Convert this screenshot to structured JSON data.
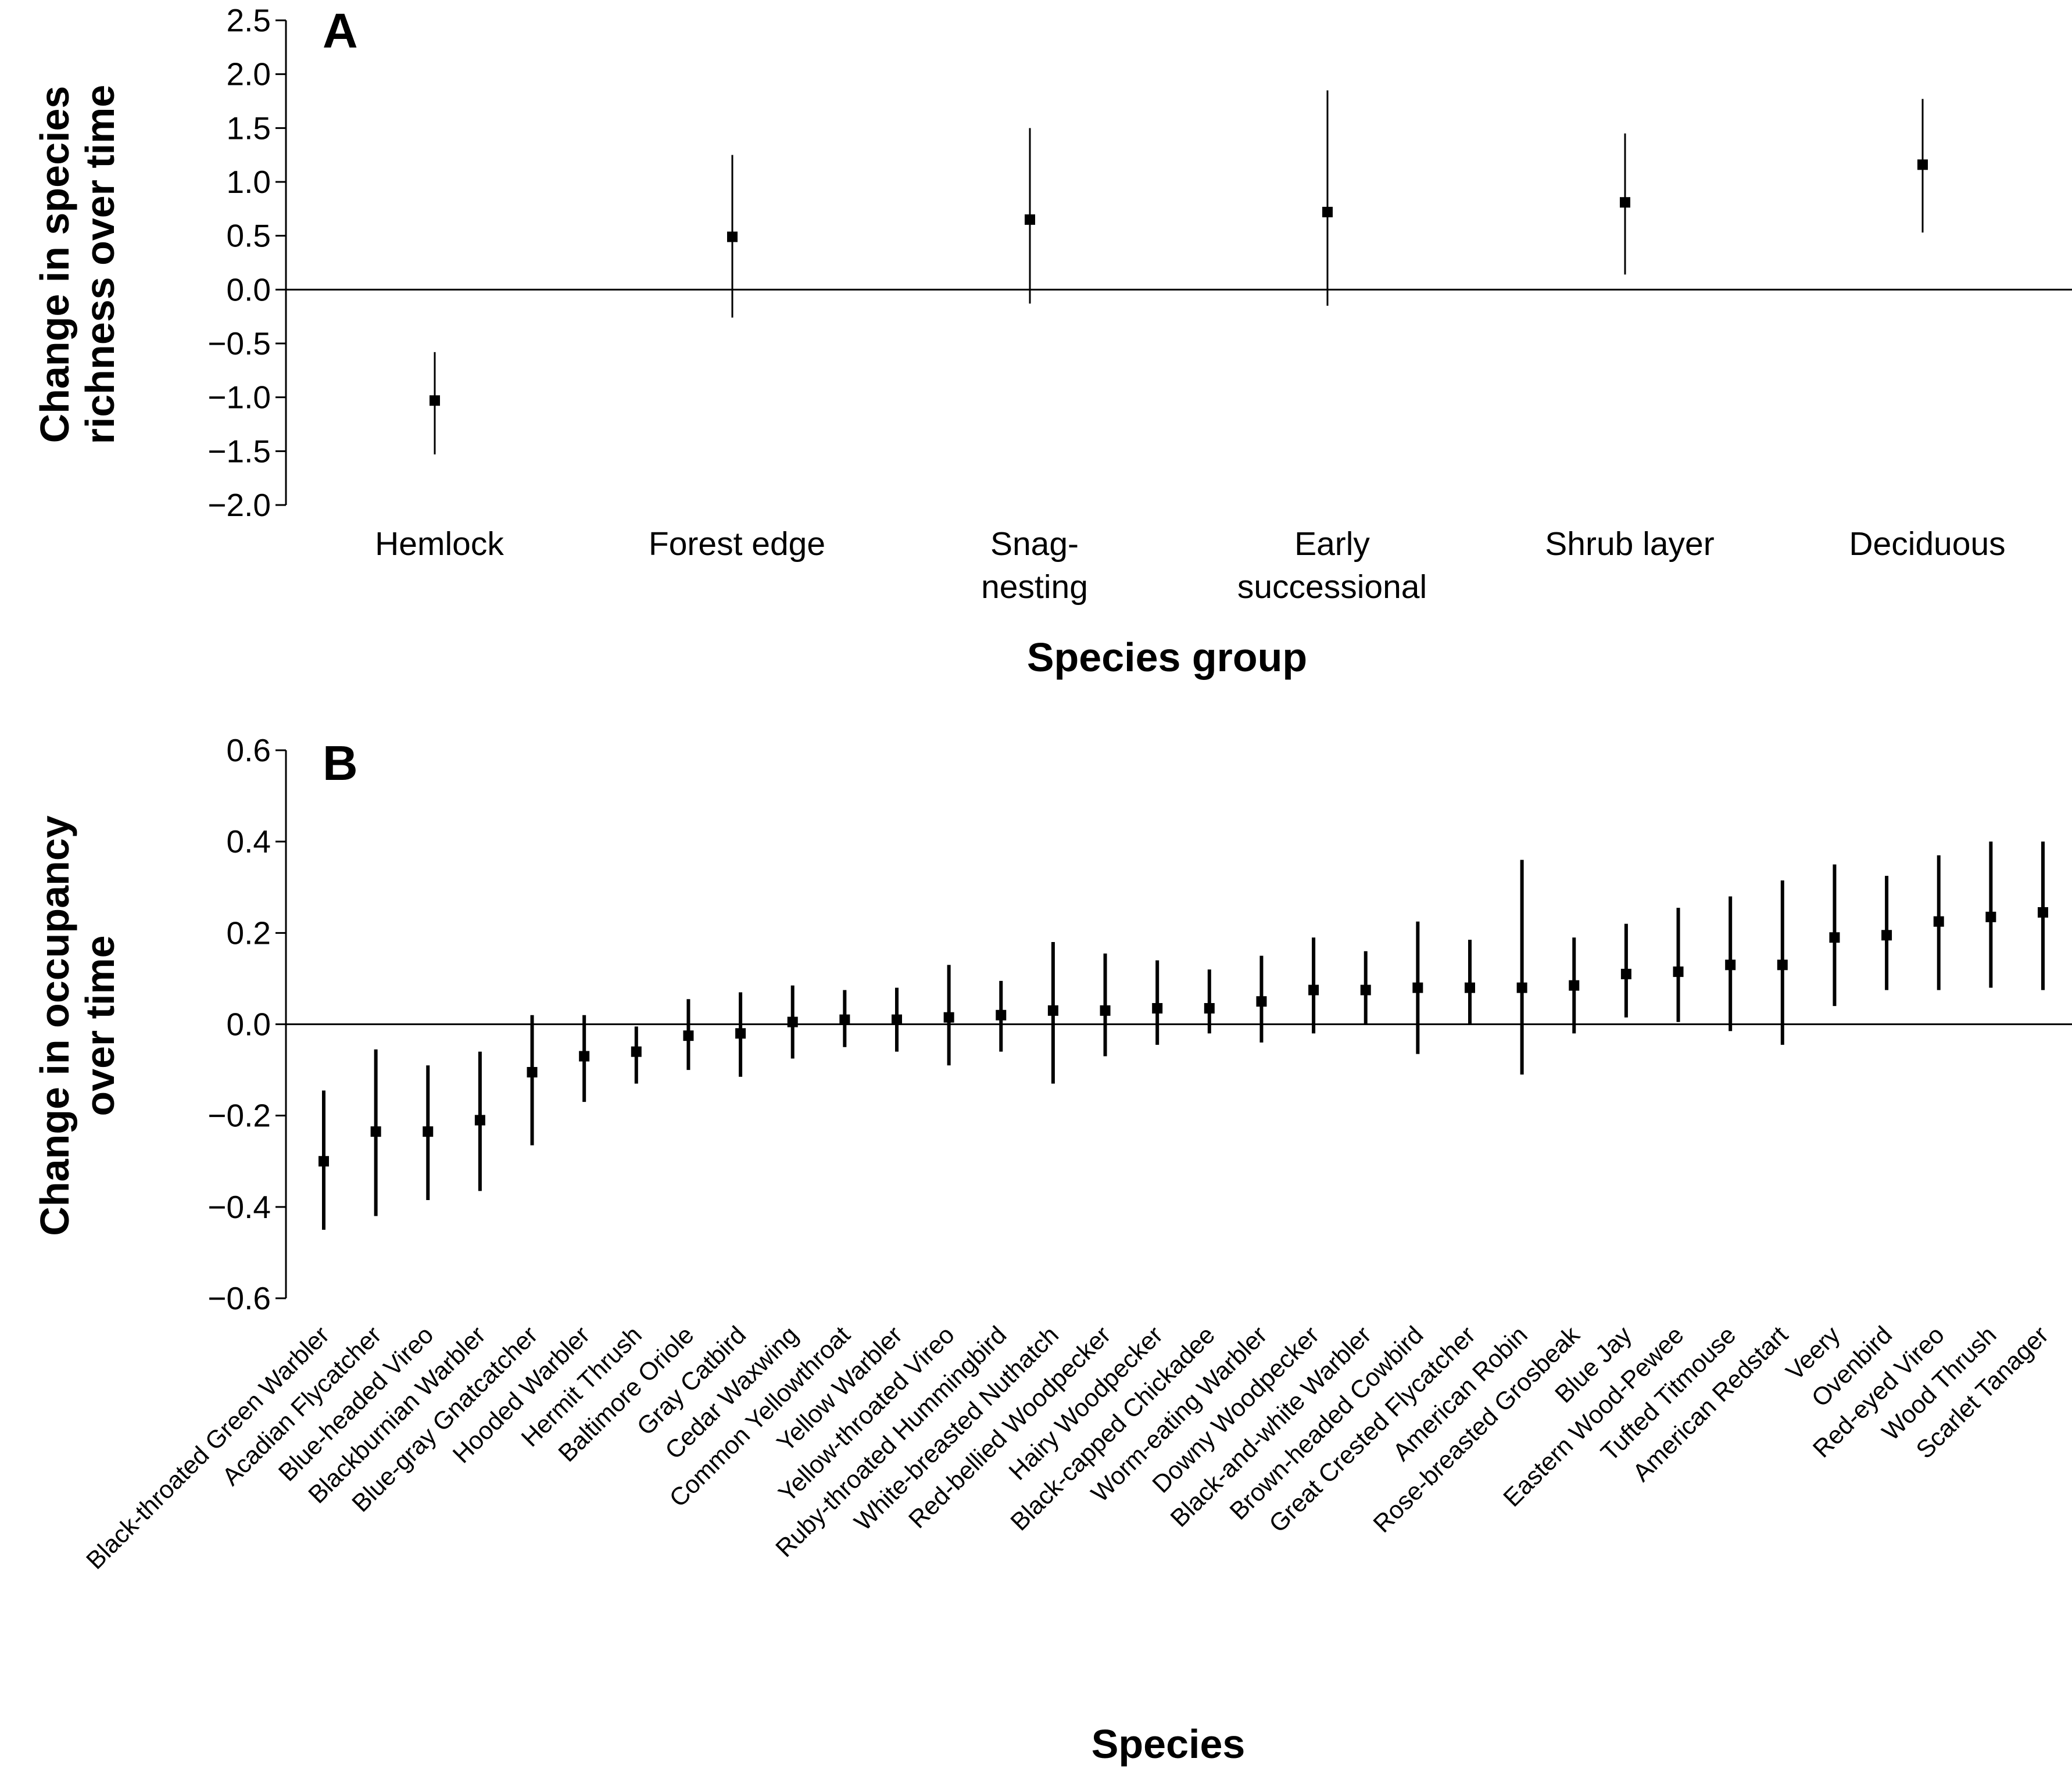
{
  "chart_data": [
    {
      "type": "scatter",
      "panel_label": "A",
      "ylabel_lines": [
        "Change in species",
        "richness over time"
      ],
      "xlabel": "Species group",
      "ylim": [
        -2.0,
        2.5
      ],
      "yticks": [
        2.5,
        2.0,
        1.5,
        1.0,
        0.5,
        0.0,
        -0.5,
        -1.0,
        -1.5,
        -2.0
      ],
      "ytick_labels": [
        "2.5",
        "2.0",
        "1.5",
        "1.0",
        "0.5",
        "0.0",
        "−0.5",
        "−1.0",
        "−1.5",
        "−2.0"
      ],
      "categories": [
        [
          "Hemlock"
        ],
        [
          "Forest edge"
        ],
        [
          "Snag-",
          "nesting"
        ],
        [
          "Early",
          "successional"
        ],
        [
          "Shrub layer"
        ],
        [
          "Deciduous"
        ]
      ],
      "values": [
        -1.03,
        0.49,
        0.65,
        0.72,
        0.81,
        1.16
      ],
      "error_low": [
        -1.53,
        -0.26,
        -0.13,
        -0.15,
        0.14,
        0.53
      ],
      "error_high": [
        -0.58,
        1.25,
        1.5,
        1.85,
        1.45,
        1.77
      ],
      "reference_line": 0.0,
      "grid": false
    },
    {
      "type": "scatter",
      "panel_label": "B",
      "ylabel_lines": [
        "Change in occupancy",
        "over time"
      ],
      "xlabel": "Species",
      "ylim": [
        -0.6,
        0.6
      ],
      "yticks": [
        0.6,
        0.4,
        0.2,
        0.0,
        -0.2,
        -0.4,
        -0.6
      ],
      "ytick_labels": [
        "0.6",
        "0.4",
        "0.2",
        "0.0",
        "−0.2",
        "−0.4",
        "−0.6"
      ],
      "categories": [
        "Black-throated Green Warbler",
        "Acadian Flycatcher",
        "Blue-headed Vireo",
        "Blackburnian Warbler",
        "Blue-gray Gnatcatcher",
        "Hooded Warbler",
        "Hermit Thrush",
        "Baltimore Oriole",
        "Gray Catbird",
        "Cedar Waxwing",
        "Common Yellowthroat",
        "Yellow Warbler",
        "Yellow-throated Vireo",
        "Ruby-throated Hummingbird",
        "White-breasted Nuthatch",
        "Red-bellied Woodpecker",
        "Hairy Woodpecker",
        "Black-capped Chickadee",
        "Worm-eating Warbler",
        "Downy Woodpecker",
        "Black-and-white Warbler",
        "Brown-headed Cowbird",
        "Great Crested Flycatcher",
        "American Robin",
        "Rose-breasted Grosbeak",
        "Blue Jay",
        "Eastern Wood-Pewee",
        "Tufted Titmouse",
        "American Redstart",
        "Veery",
        "Ovenbird",
        "Red-eyed Vireo",
        "Wood Thrush",
        "Scarlet Tanager"
      ],
      "values": [
        -0.3,
        -0.235,
        -0.235,
        -0.21,
        -0.105,
        -0.07,
        -0.06,
        -0.025,
        -0.02,
        0.005,
        0.01,
        0.01,
        0.015,
        0.02,
        0.03,
        0.03,
        0.035,
        0.035,
        0.05,
        0.075,
        0.075,
        0.08,
        0.08,
        0.08,
        0.085,
        0.11,
        0.115,
        0.13,
        0.13,
        0.19,
        0.195,
        0.225,
        0.235,
        0.245
      ],
      "error_low": [
        -0.45,
        -0.42,
        -0.385,
        -0.365,
        -0.265,
        -0.17,
        -0.13,
        -0.1,
        -0.115,
        -0.075,
        -0.05,
        -0.06,
        -0.09,
        -0.06,
        -0.13,
        -0.07,
        -0.045,
        -0.02,
        -0.04,
        -0.02,
        0.0,
        -0.065,
        0.0,
        -0.11,
        -0.02,
        0.015,
        0.005,
        -0.015,
        -0.045,
        0.04,
        0.075,
        0.075,
        0.08,
        0.075
      ],
      "error_high": [
        -0.145,
        -0.055,
        -0.09,
        -0.06,
        0.02,
        0.02,
        -0.005,
        0.055,
        0.07,
        0.085,
        0.075,
        0.08,
        0.13,
        0.095,
        0.18,
        0.155,
        0.14,
        0.12,
        0.15,
        0.19,
        0.16,
        0.225,
        0.185,
        0.36,
        0.19,
        0.22,
        0.255,
        0.28,
        0.315,
        0.35,
        0.325,
        0.37,
        0.4,
        0.4
      ],
      "reference_line": 0.0,
      "grid": false
    }
  ]
}
